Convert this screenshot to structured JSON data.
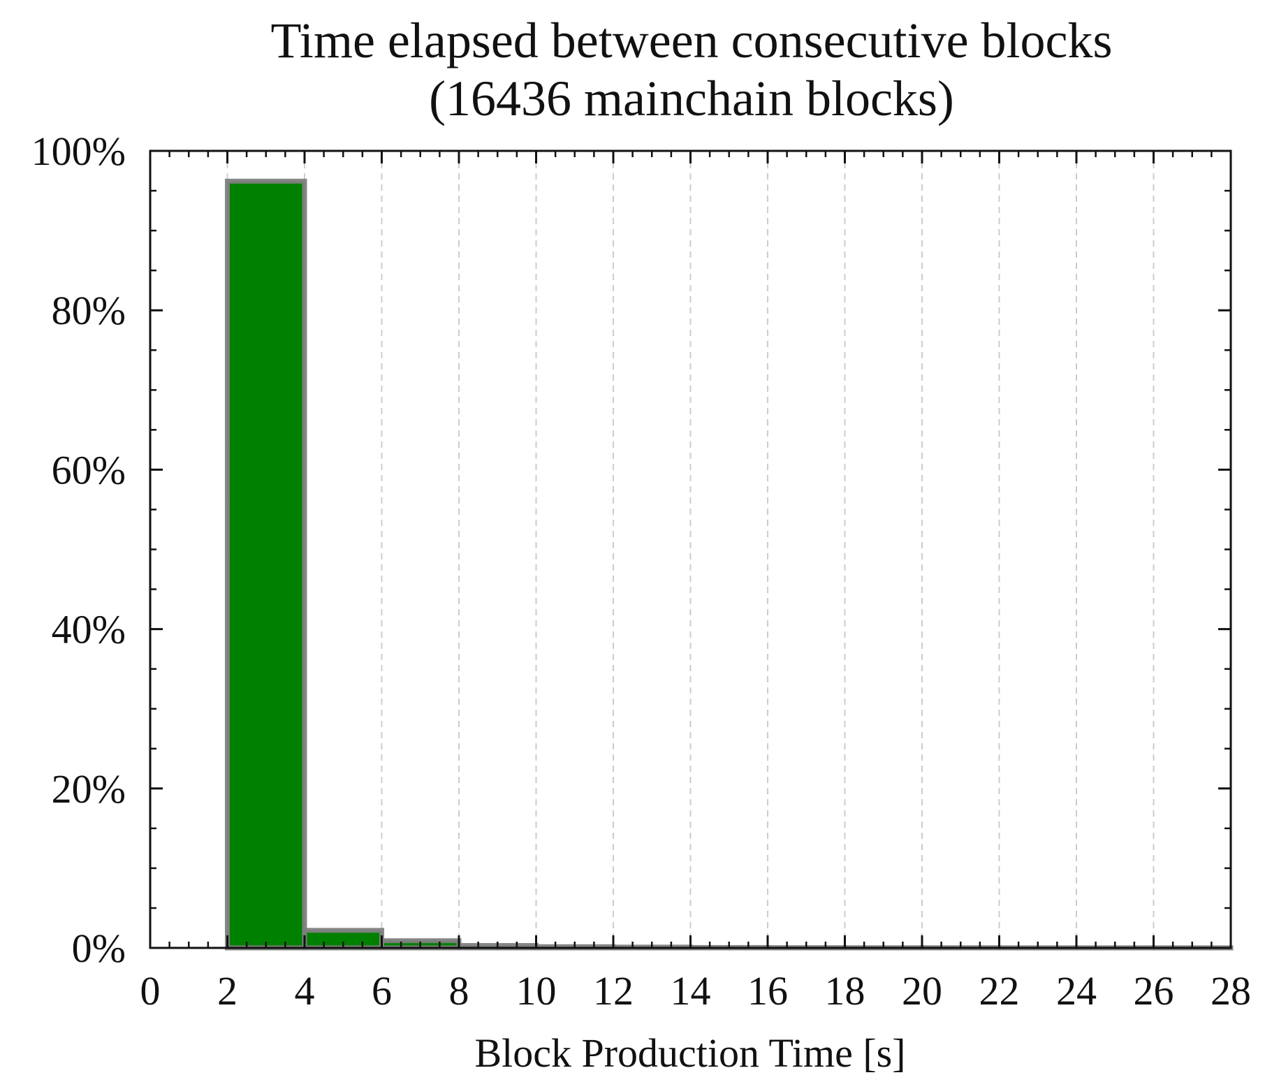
{
  "chart_data": {
    "type": "bar",
    "title": "Time elapsed between consecutive blocks",
    "subtitle": "(16436 mainchain blocks)",
    "xlabel": "Block Production Time [s]",
    "ylabel": "",
    "xlim": [
      0,
      28
    ],
    "ylim": [
      0,
      100
    ],
    "x_ticks": [
      "0",
      "2",
      "4",
      "6",
      "8",
      "10",
      "12",
      "14",
      "16",
      "18",
      "20",
      "22",
      "24",
      "26",
      "28"
    ],
    "y_ticks": [
      "0%",
      "20%",
      "40%",
      "60%",
      "80%",
      "100%"
    ],
    "bin_edges": [
      0,
      2,
      4,
      6,
      8,
      10,
      12,
      14,
      16,
      18,
      20,
      22,
      24,
      26,
      28
    ],
    "values": [
      0,
      96.2,
      2.2,
      0.9,
      0.3,
      0.15,
      0.1,
      0.05,
      0.03,
      0.02,
      0.02,
      0.01,
      0.01,
      0.01
    ],
    "bar_color": "#008000",
    "edge_color": "#808080",
    "grid": {
      "x": true,
      "y": false,
      "style": "dashed",
      "color": "#cccccc"
    }
  }
}
